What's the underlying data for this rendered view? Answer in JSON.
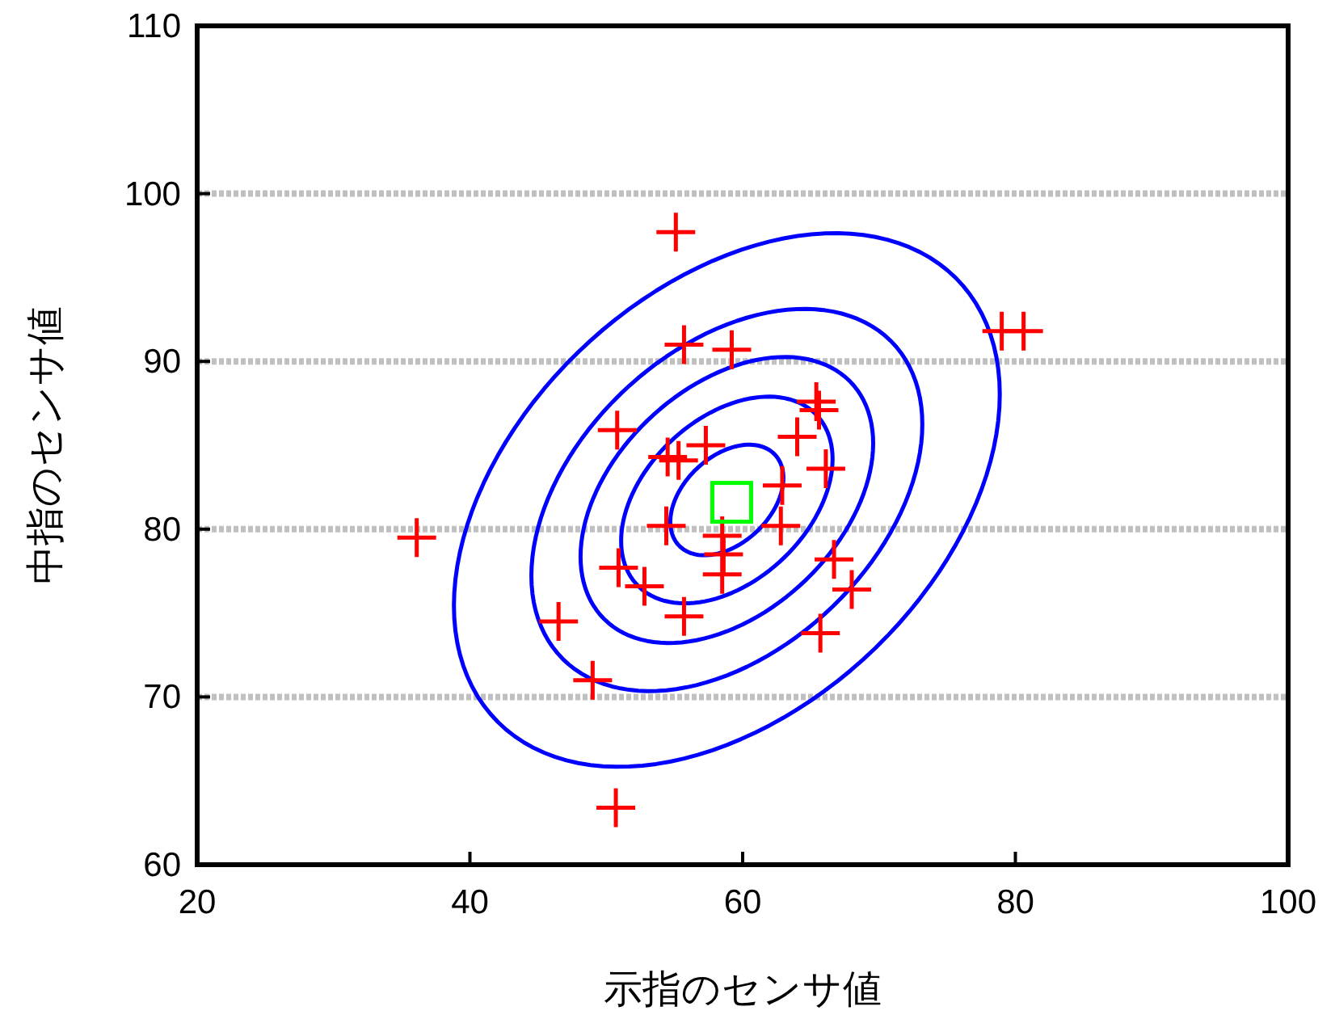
{
  "chart_data": {
    "type": "scatter",
    "xlabel": "示指のセンサ値",
    "ylabel": "中指のセンサ値",
    "xlim": [
      20,
      100
    ],
    "ylim": [
      60,
      110
    ],
    "xticks": [
      20,
      40,
      60,
      80,
      100
    ],
    "yticks": [
      60,
      70,
      80,
      90,
      100,
      110
    ],
    "grid": "y",
    "series": [
      {
        "color": "#ff0000",
        "marker": "cross",
        "x": [
          36.1,
          55.1,
          55.7,
          59.2,
          50.8,
          65.4,
          65.6,
          64.0,
          66.1,
          62.9,
          54.5,
          55.3,
          57.3,
          54.4,
          62.8,
          58.5,
          58.6,
          58.5,
          50.9,
          52.8,
          55.7,
          46.5,
          49.0,
          50.7,
          66.7,
          68.0,
          65.7,
          79.0,
          80.6
        ],
        "values": [
          79.5,
          97.7,
          91.0,
          90.7,
          85.9,
          87.6,
          87.1,
          85.5,
          83.6,
          82.6,
          84.3,
          84.1,
          85.0,
          80.2,
          80.2,
          79.6,
          78.5,
          77.3,
          77.7,
          76.6,
          74.8,
          74.5,
          71.0,
          63.4,
          78.2,
          76.4,
          73.8,
          91.8,
          91.8
        ]
      },
      {
        "color": "#00ff00",
        "marker": "square",
        "x": [
          59.2
        ],
        "values": [
          81.6
        ]
      }
    ]
  }
}
